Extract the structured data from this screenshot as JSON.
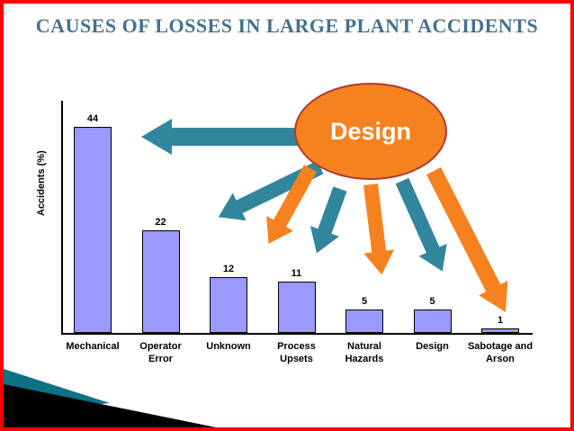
{
  "slide": {
    "title": "CAUSES OF LOSSES IN LARGE PLANT ACCIDENTS",
    "callout": "Design"
  },
  "colors": {
    "border": "#ff0000",
    "title_text": "#44708e",
    "bar_fill": "#9999ff",
    "bar_border": "#000000",
    "axis": "#000000",
    "teal_arrow": "#31859c",
    "orange_arrow": "#f6821f",
    "ellipse_fill": "#f6821f",
    "ellipse_border": "#b03a2e",
    "callout_text": "#ffffff",
    "decoration_teal": "#0d7285",
    "decoration_black": "#000000"
  },
  "chart_data": {
    "type": "bar",
    "categories": [
      "Mechanical",
      "Operator Error",
      "Unknown",
      "Process Upsets",
      "Natural Hazards",
      "Design",
      "Sabotage and Arson"
    ],
    "values": [
      44,
      22,
      12,
      11,
      5,
      5,
      1
    ],
    "title": "",
    "xlabel": "",
    "ylabel": "Accidents (%)",
    "ylim": [
      0,
      48
    ],
    "grid": false,
    "legend": false,
    "data_labels": true
  }
}
